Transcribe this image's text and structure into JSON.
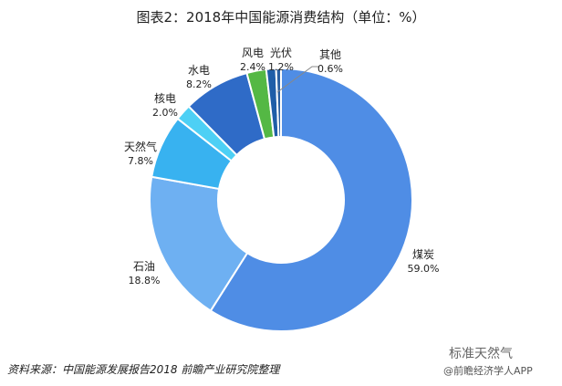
{
  "title": "图表2：2018年中国能源消费结构（单位：%）",
  "source": "资料来源：中国能源发展报告2018  前瞻产业研究院整理",
  "watermark": {
    "line1": "标准天然气",
    "line2": "@前瞻经济学人APP"
  },
  "colors": {
    "煤炭": "#4f8de5",
    "石油": "#6eb0f2",
    "天然气": "#38b2f0",
    "核电": "#4dd0f5",
    "水电": "#2f6bc7",
    "风电": "#54b844",
    "光伏": "#1f5ea8",
    "其他": "#2a5fa0"
  },
  "chart_data": {
    "type": "pie",
    "donut": true,
    "title": "图表2：2018年中国能源消费结构（单位：%）",
    "slices": [
      {
        "label": "煤炭",
        "value": 59.0,
        "display": "59.0%"
      },
      {
        "label": "石油",
        "value": 18.8,
        "display": "18.8%"
      },
      {
        "label": "天然气",
        "value": 7.8,
        "display": "7.8%"
      },
      {
        "label": "核电",
        "value": 2.0,
        "display": "2.0%"
      },
      {
        "label": "水电",
        "value": 8.2,
        "display": "8.2%"
      },
      {
        "label": "风电",
        "value": 2.4,
        "display": "2.4%"
      },
      {
        "label": "光伏",
        "value": 1.2,
        "display": "1.2%"
      },
      {
        "label": "其他",
        "value": 0.6,
        "display": "0.6%"
      }
    ]
  }
}
